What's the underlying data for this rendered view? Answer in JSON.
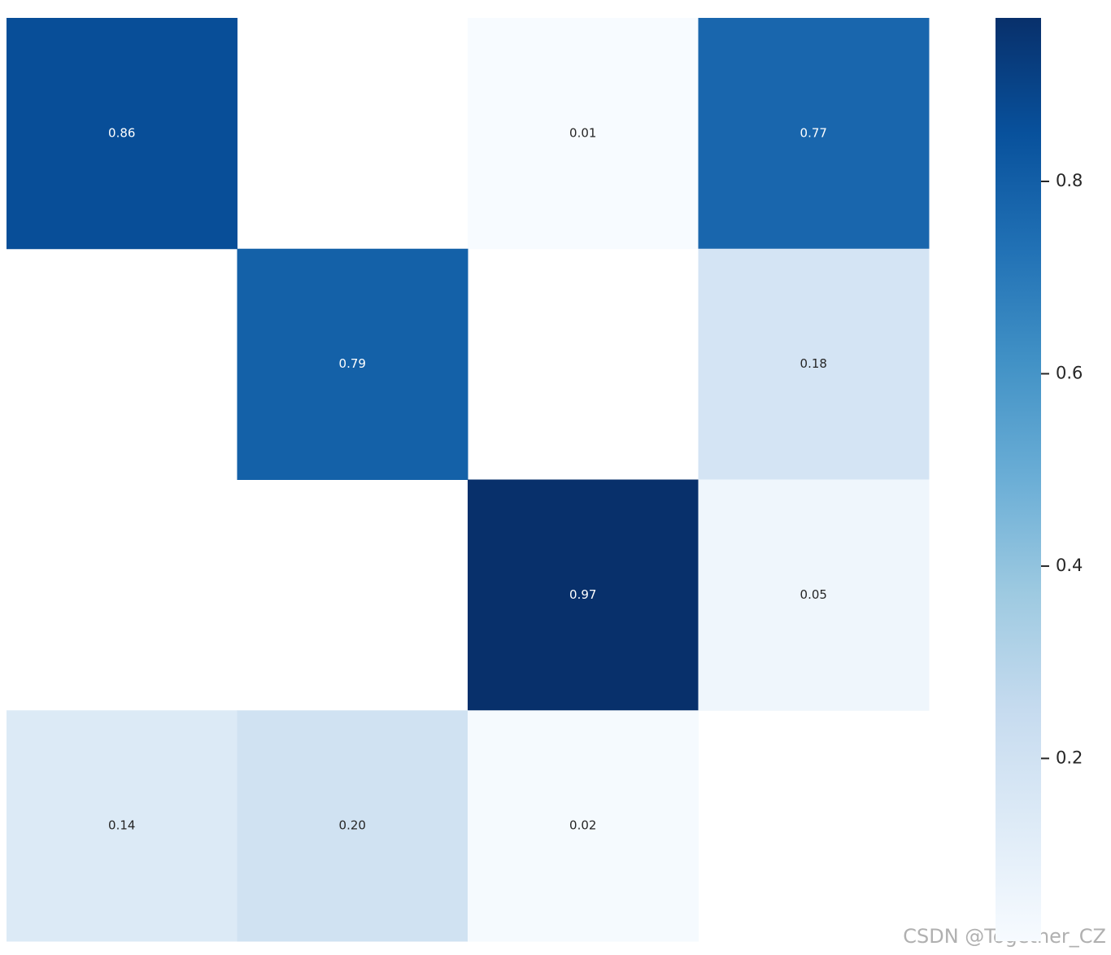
{
  "chart_data": {
    "type": "heatmap",
    "values": [
      [
        0.86,
        null,
        0.01,
        0.77
      ],
      [
        null,
        0.79,
        null,
        0.18
      ],
      [
        null,
        null,
        0.97,
        0.05
      ],
      [
        0.14,
        0.2,
        0.02,
        null
      ]
    ],
    "value_labels": [
      [
        "0.86",
        null,
        "0.01",
        "0.77"
      ],
      [
        null,
        "0.79",
        null,
        "0.18"
      ],
      [
        null,
        null,
        "0.97",
        "0.05"
      ],
      [
        "0.14",
        "0.20",
        "0.02",
        null
      ]
    ],
    "colormap": "Blues",
    "clim": [
      0.01,
      0.97
    ],
    "cticks": [
      0.2,
      0.4,
      0.6,
      0.8
    ],
    "watermark": "CSDN @Together_CZ"
  }
}
